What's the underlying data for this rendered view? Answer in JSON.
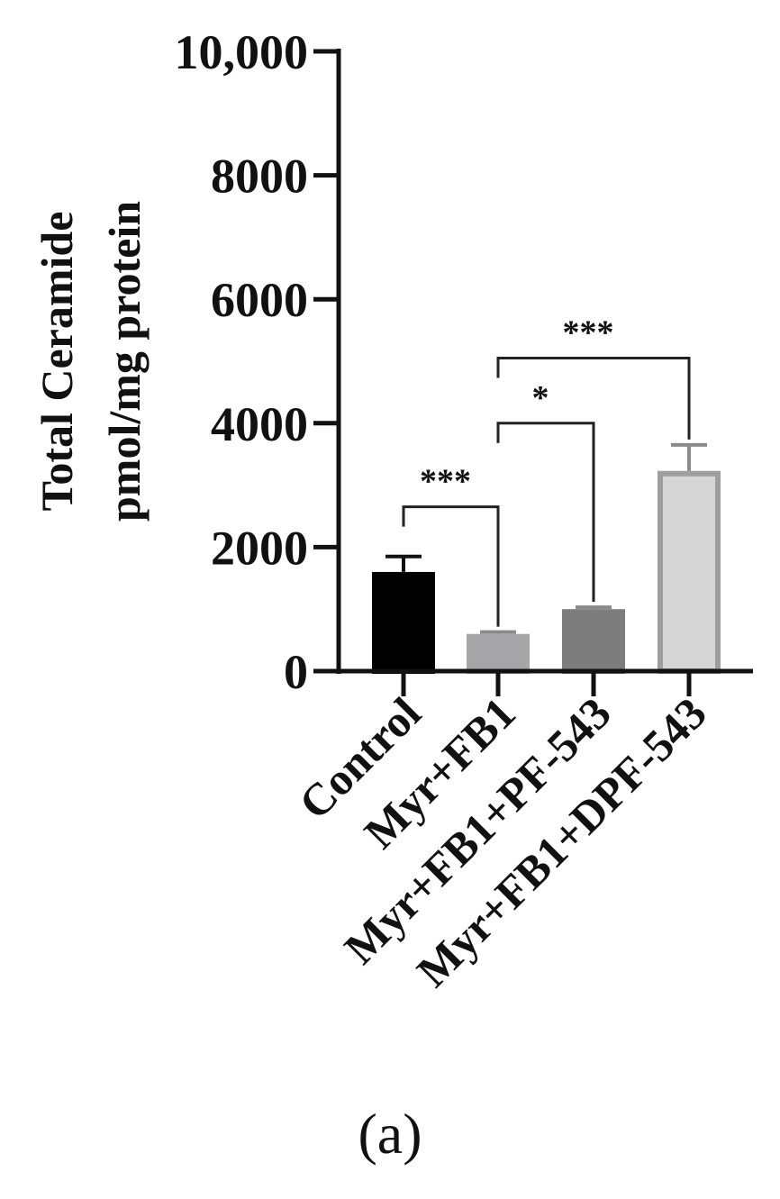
{
  "panel_label": "(a)",
  "chart_data": {
    "type": "bar",
    "title": "",
    "xlabel": "",
    "ylabel_lines": [
      "Total Ceramide",
      "pmol/mg protein"
    ],
    "categories": [
      "Control",
      "Myr+FB1",
      "Myr+FB1+PF-543",
      "Myr+FB1+DPF-543"
    ],
    "values": [
      1600,
      600,
      1000,
      3230
    ],
    "errors": [
      250,
      30,
      30,
      420
    ],
    "ylim": [
      0,
      10000
    ],
    "yticks": [
      0,
      2000,
      4000,
      6000,
      8000,
      10000
    ],
    "ytick_labels": [
      "0",
      "2000",
      "4000",
      "6000",
      "8000",
      "10,000"
    ],
    "bar_colors": [
      "#000000",
      "#a6a6a8",
      "#7d7d7d",
      "#d6d6d6"
    ],
    "bar_edge_colors": [
      "#000000",
      "#a6a6a8",
      "#7d7d7d",
      "#9e9e9e"
    ],
    "grid": false,
    "significance": [
      {
        "from": 0,
        "to": 1,
        "label": "***",
        "level": 2650
      },
      {
        "from": 1,
        "to": 2,
        "label": "*",
        "level": 4000
      },
      {
        "from": 1,
        "to": 3,
        "label": "***",
        "level": 5050
      }
    ]
  }
}
